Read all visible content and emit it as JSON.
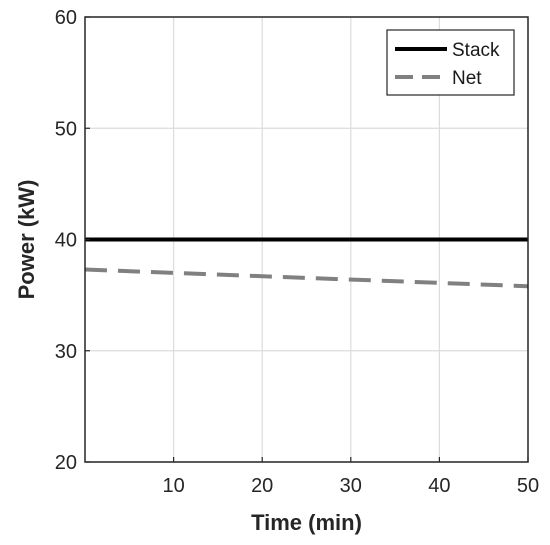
{
  "chart_data": {
    "type": "line",
    "xlabel": "Time (min)",
    "ylabel": "Power (kW)",
    "xlim": [
      0,
      50
    ],
    "ylim": [
      20,
      60
    ],
    "xticks": [
      10,
      20,
      30,
      40,
      50
    ],
    "yticks": [
      20,
      30,
      40,
      50,
      60
    ],
    "grid": true,
    "legend_position": "top-right",
    "series": [
      {
        "name": "Stack",
        "x": [
          0,
          50
        ],
        "y": [
          40.0,
          40.0
        ],
        "color": "#000000",
        "style": "solid"
      },
      {
        "name": "Net",
        "x": [
          0,
          50
        ],
        "y": [
          37.3,
          35.8
        ],
        "color": "#808080",
        "style": "dashed"
      }
    ]
  }
}
